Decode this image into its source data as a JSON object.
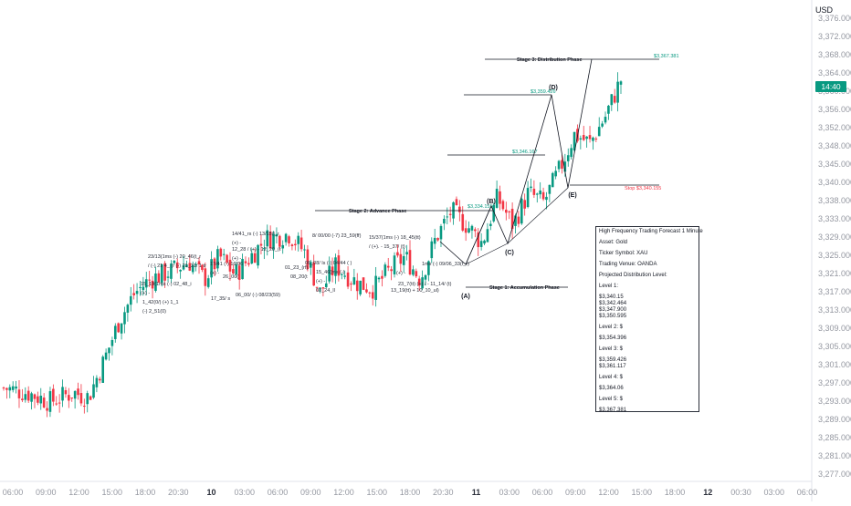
{
  "currency": "USD",
  "last_price_label": "14:40",
  "price_ticks": [
    "3,376.000",
    "3,372.000",
    "3,368.000",
    "3,364.000",
    "3,360.000",
    "3,356.000",
    "3,352.000",
    "3,348.000",
    "3,345.000",
    "3,340.000",
    "3,338.000",
    "3,333.000",
    "3,329.000",
    "3,325.000",
    "3,321.000",
    "3,317.000",
    "3,313.000",
    "3,309.000",
    "3,305.000",
    "3,301.000",
    "3,297.000",
    "3,293.000",
    "3,289.000",
    "3,285.000",
    "3,281.000",
    "3,277.000"
  ],
  "time_ticks": [
    {
      "label": "06:00",
      "bold": false
    },
    {
      "label": "09:00",
      "bold": false
    },
    {
      "label": "12:00",
      "bold": false
    },
    {
      "label": "15:00",
      "bold": false
    },
    {
      "label": "18:00",
      "bold": false
    },
    {
      "label": "20:30",
      "bold": false
    },
    {
      "label": "10",
      "bold": true
    },
    {
      "label": "03:00",
      "bold": false
    },
    {
      "label": "06:00",
      "bold": false
    },
    {
      "label": "09:00",
      "bold": false
    },
    {
      "label": "12:00",
      "bold": false
    },
    {
      "label": "15:00",
      "bold": false
    },
    {
      "label": "18:00",
      "bold": false
    },
    {
      "label": "20:30",
      "bold": false
    },
    {
      "label": "11",
      "bold": true
    },
    {
      "label": "03:00",
      "bold": false
    },
    {
      "label": "06:00",
      "bold": false
    },
    {
      "label": "09:00",
      "bold": false
    },
    {
      "label": "12:00",
      "bold": false
    },
    {
      "label": "15:00",
      "bold": false
    },
    {
      "label": "18:00",
      "bold": false
    },
    {
      "label": "12",
      "bold": true
    },
    {
      "label": "00:30",
      "bold": false
    },
    {
      "label": "03:00",
      "bold": false
    },
    {
      "label": "06:00",
      "bold": false
    }
  ],
  "colors": {
    "up": "#089981",
    "down": "#f23645",
    "line": "#131722"
  },
  "annotations": {
    "stage1": "Stage 1: Accumulation Phase",
    "stage2": "Stage 2: Advance Phase",
    "stage3": "Stage 3: Distribution Phase",
    "point_a": "(A)",
    "point_b": "(B)",
    "point_c": "(C)",
    "point_d": "(D)",
    "point_e": "(E)",
    "price_top": "$3,367.381",
    "price_d": "$3,359.426",
    "price_mid": "$3,346.167",
    "price_b": "$3,334.155",
    "stop": "Stop $3,340.155"
  },
  "pattern_notes": [
    "15_19(1ms (-) 02_48_i",
    "(+) -",
    "1_42(0/) (+) 1_1",
    "(-) 2_51(0)",
    "23/13(1ms (-) 20_46(t_r",
    "/ (-) 21 4_ (r (-) 21_31/ 1 tr",
    "17/41 (-) 16/06",
    "(+) -",
    "17_35/ s",
    "14/41_rs (-) 13/15(l_r",
    "(+) -",
    "12_28 / (+) - 12_20_(t",
    "(+) -",
    "26_00(",
    "8/ 00/00 (-7) 23_59(ff)",
    "06_00/ (-) 08/23(59)",
    "01_23_(rf)",
    "08_20(t",
    "15_46(ms (-)",
    "(+) -",
    "08_24_ll",
    "06_08/ ls (-) 04/44 ( )",
    "15/37(1ms (-) 18_45(tt)",
    "/ (+). - 15_37/ (t)",
    "1ms (-) 09/06_33(f_r)",
    "(+) -",
    "13_19(tt) + 10_10_ul)",
    "23_7(tt) (+) / - 11_14/ (t)"
  ],
  "info_box": {
    "title": "High Frequency Trading Forecast  1 Minute",
    "asset": "Asset: Gold",
    "ticker": "Ticker Symbol: XAU",
    "venue": "Trading Venue: OANDA",
    "projected": "Projected Distribution Level:",
    "level1": "Level 1:",
    "level1_values": [
      "$3,340.15",
      "$3,342.464",
      "$3,347.900",
      "$3,350.595"
    ],
    "level2": "Level 2: $",
    "level2_value": "$3,354.396",
    "level3": "Level 3: $",
    "level3_values": [
      "$3,359.426",
      "$3,361.117"
    ],
    "level4": "Level 4: $",
    "level4_value": "$3,364.06",
    "level5": "Level 5: $",
    "level5_value": "$3,367.381"
  },
  "chart_data": {
    "type": "candlestick",
    "symbol": "XAU",
    "ylim": [
      3275,
      3378
    ],
    "close_path": [
      {
        "t": 0.0,
        "v": 3294
      },
      {
        "t": 0.03,
        "v": 3293
      },
      {
        "t": 0.06,
        "v": 3291
      },
      {
        "t": 0.09,
        "v": 3293
      },
      {
        "t": 0.11,
        "v": 3292
      },
      {
        "t": 0.13,
        "v": 3300
      },
      {
        "t": 0.15,
        "v": 3309
      },
      {
        "t": 0.17,
        "v": 3315
      },
      {
        "t": 0.19,
        "v": 3318
      },
      {
        "t": 0.22,
        "v": 3320
      },
      {
        "t": 0.24,
        "v": 3322
      },
      {
        "t": 0.26,
        "v": 3318
      },
      {
        "t": 0.28,
        "v": 3323
      },
      {
        "t": 0.3,
        "v": 3319
      },
      {
        "t": 0.32,
        "v": 3323
      },
      {
        "t": 0.34,
        "v": 3327
      },
      {
        "t": 0.37,
        "v": 3328
      },
      {
        "t": 0.39,
        "v": 3324
      },
      {
        "t": 0.41,
        "v": 3315
      },
      {
        "t": 0.43,
        "v": 3321
      },
      {
        "t": 0.46,
        "v": 3317
      },
      {
        "t": 0.48,
        "v": 3316
      },
      {
        "t": 0.5,
        "v": 3320
      },
      {
        "t": 0.52,
        "v": 3323
      },
      {
        "t": 0.54,
        "v": 3318
      },
      {
        "t": 0.56,
        "v": 3327
      },
      {
        "t": 0.58,
        "v": 3333
      },
      {
        "t": 0.6,
        "v": 3330
      },
      {
        "t": 0.62,
        "v": 3326
      },
      {
        "t": 0.64,
        "v": 3336
      },
      {
        "t": 0.66,
        "v": 3330
      },
      {
        "t": 0.68,
        "v": 3337
      },
      {
        "t": 0.7,
        "v": 3335
      },
      {
        "t": 0.72,
        "v": 3342
      },
      {
        "t": 0.74,
        "v": 3350
      },
      {
        "t": 0.76,
        "v": 3348
      },
      {
        "t": 0.78,
        "v": 3354
      },
      {
        "t": 0.8,
        "v": 3362
      }
    ]
  }
}
